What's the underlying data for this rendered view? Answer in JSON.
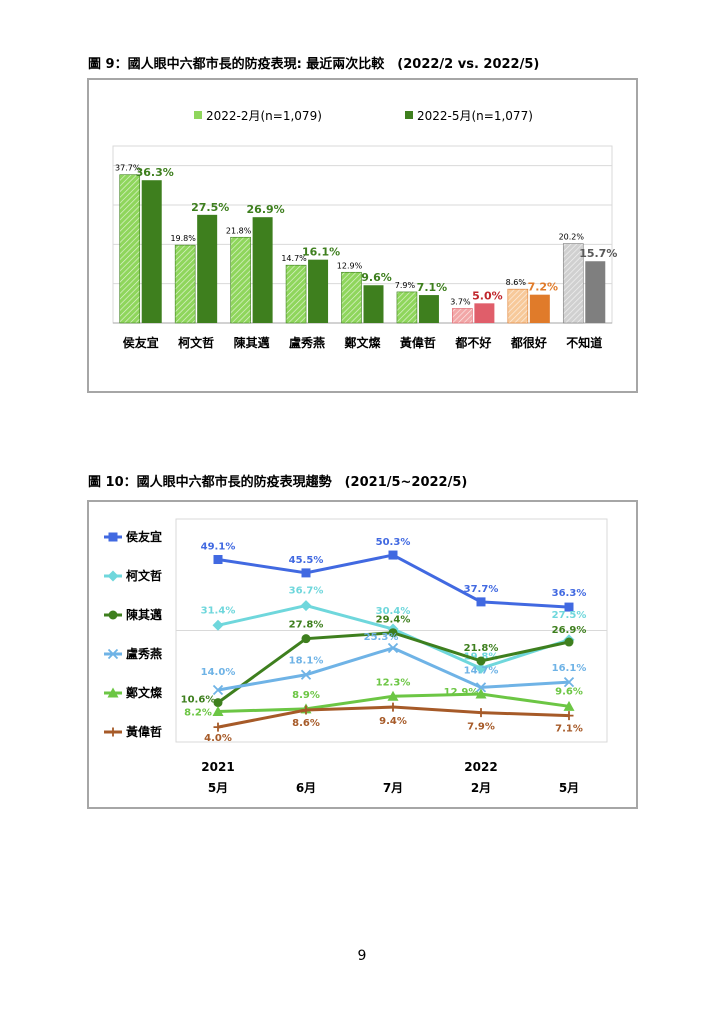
{
  "page_number": "9",
  "colors": {
    "green_light": "#8fd65c",
    "green_dark": "#3e7f1e",
    "red_light": "#f2a7a7",
    "red_dark": "#e05e6a",
    "orange_light": "#f7c99a",
    "orange_dark": "#e07b2a",
    "gray_light": "#d0d0d0",
    "gray_dark": "#7f7f7f",
    "label_green": "#3e7f1e",
    "label_red": "#c0272d",
    "label_orange": "#e07b2a",
    "label_gray": "#595959",
    "blue": "#4169e1",
    "cyan": "#6fd7dc",
    "darkgreen": "#3e7f1e",
    "lightblue": "#6fb3e6",
    "green": "#6cc644",
    "brown": "#a65a28"
  },
  "chart_data": [
    {
      "type": "bar",
      "title": "圖 9：國人眼中六都市長的防疫表現: 最近兩次比較　(2022/2 vs. 2022/5)",
      "categories": [
        "侯友宜",
        "柯文哲",
        "陳其邁",
        "盧秀燕",
        "鄭文燦",
        "黃偉哲",
        "都不好",
        "都很好",
        "不知道"
      ],
      "series": [
        {
          "name": "2022-2月(n=1,079)",
          "values": [
            37.7,
            19.8,
            21.8,
            14.7,
            12.9,
            7.9,
            3.7,
            8.6,
            20.2
          ],
          "labels": [
            "37.7%",
            "19.8%",
            "21.8%",
            "14.7%",
            "12.9%",
            "7.9%",
            "3.7%",
            "8.6%",
            "20.2%"
          ]
        },
        {
          "name": "2022-5月(n=1,077)",
          "values": [
            36.3,
            27.5,
            26.9,
            16.1,
            9.6,
            7.1,
            5.0,
            7.2,
            15.7
          ],
          "labels": [
            "36.3%",
            "27.5%",
            "26.9%",
            "16.1%",
            "9.6%",
            "7.1%",
            "5.0%",
            "7.2%",
            "15.7%"
          ]
        }
      ],
      "ylim": [
        0,
        45
      ],
      "grid": true,
      "legend": "top"
    },
    {
      "type": "line",
      "title": "圖 10：國人眼中六都市長的防疫表現趨勢　(2021/5~2022/5)",
      "categories": [
        "5月",
        "6月",
        "7月",
        "2月",
        "5月"
      ],
      "year_labels": [
        "2021",
        "",
        "",
        "2022",
        ""
      ],
      "series": [
        {
          "name": "侯友宜",
          "marker": "square",
          "values": [
            49.1,
            45.5,
            50.3,
            37.7,
            36.3
          ],
          "labels": [
            "49.1%",
            "45.5%",
            "50.3%",
            "37.7%",
            "36.3%"
          ]
        },
        {
          "name": "柯文哲",
          "marker": "diamond",
          "values": [
            31.4,
            36.7,
            30.4,
            19.8,
            27.5
          ],
          "labels": [
            "31.4%",
            "36.7%",
            "30.4%",
            "19.8%",
            "27.5%"
          ]
        },
        {
          "name": "陳其邁",
          "marker": "circle",
          "values": [
            10.6,
            27.8,
            29.4,
            21.8,
            26.9
          ],
          "labels": [
            "10.6%",
            "27.8%",
            "29.4%",
            "21.8%",
            "26.9%"
          ]
        },
        {
          "name": "盧秀燕",
          "marker": "x",
          "values": [
            14.0,
            18.1,
            25.3,
            14.7,
            16.1
          ],
          "labels": [
            "14.0%",
            "18.1%",
            "25.3%",
            "14.7%",
            "16.1%"
          ]
        },
        {
          "name": "鄭文燦",
          "marker": "triangle",
          "values": [
            8.2,
            8.9,
            12.3,
            12.9,
            9.6
          ],
          "labels": [
            "8.2%",
            "8.9%",
            "12.3%",
            "12.9%",
            "9.6%"
          ]
        },
        {
          "name": "黃偉哲",
          "marker": "plus",
          "values": [
            4.0,
            8.6,
            9.4,
            7.9,
            7.1
          ],
          "labels": [
            "4.0%",
            "8.6%",
            "9.4%",
            "7.9%",
            "7.1%"
          ]
        }
      ],
      "ylim": [
        0,
        60
      ],
      "grid": true,
      "legend": "left"
    }
  ]
}
